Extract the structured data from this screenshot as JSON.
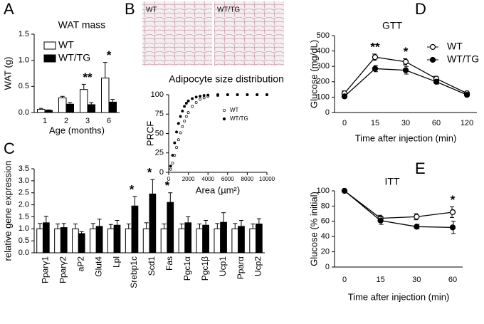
{
  "chart_data": [
    {
      "type": "bar",
      "panel": "A",
      "title": "WAT mass",
      "xlabel": "Age (months)",
      "ylabel": "WAT (g)",
      "categories": [
        "1",
        "2",
        "3",
        "6"
      ],
      "series": [
        {
          "name": "WT",
          "color": "#ffffff",
          "values": [
            0.06,
            0.28,
            0.44,
            0.66
          ],
          "errors": [
            0.02,
            0.03,
            0.1,
            0.3
          ]
        },
        {
          "name": "WT/TG",
          "color": "#000000",
          "values": [
            0.04,
            0.16,
            0.15,
            0.2
          ],
          "errors": [
            0.01,
            0.03,
            0.04,
            0.05
          ]
        }
      ],
      "ylim": [
        0,
        1.5
      ],
      "yticks": [
        {
          "value": 0,
          "label": "0.0"
        },
        {
          "value": 0.5,
          "label": "0.5"
        },
        {
          "value": 1,
          "label": "1.0"
        },
        {
          "value": 1.5,
          "label": "1.5"
        }
      ],
      "legend": "upper left",
      "annotations": [
        {
          "text": "**",
          "x": "3"
        },
        {
          "text": "*",
          "x": "6"
        }
      ]
    },
    {
      "type": "scatter",
      "panel": "B",
      "image_labels": [
        "WT",
        "WT/TG"
      ],
      "title": "Adipocyte size distribution",
      "xlabel": "Area (µm²)",
      "ylabel": "PRCF",
      "x": [
        200,
        400,
        600,
        800,
        1000,
        1200,
        1400,
        1600,
        1800,
        2000,
        2400,
        2800,
        3200,
        3600,
        4000,
        5000,
        6000,
        7000,
        8000,
        9000,
        10000
      ],
      "series": [
        {
          "name": "WT",
          "color": "#ffffff",
          "values": [
            4,
            12,
            22,
            32,
            42,
            51,
            59,
            66,
            72,
            77,
            85,
            90,
            94,
            96,
            98,
            99,
            100,
            100,
            100,
            100,
            100
          ]
        },
        {
          "name": "WT/TG",
          "color": "#000000",
          "values": [
            8,
            22,
            38,
            52,
            63,
            72,
            79,
            85,
            89,
            92,
            95,
            97,
            98,
            99,
            99.5,
            100,
            100,
            100,
            100,
            100,
            100
          ]
        }
      ],
      "xlim": [
        0,
        10000
      ],
      "xticks": [
        0,
        2000,
        4000,
        6000,
        8000,
        10000
      ],
      "ylim": [
        0,
        100
      ],
      "yticks": [
        0,
        25,
        50,
        75,
        100
      ],
      "legend": "right"
    },
    {
      "type": "bar",
      "panel": "C",
      "ylabel": "relative gene expression",
      "categories": [
        "Pparγ1",
        "Pparγ2",
        "aP2",
        "Glut4",
        "Lpl",
        "Srebp1c",
        "Scd1",
        "Fas",
        "Pgc1α",
        "Pgc1β",
        "Ucp1",
        "Pparα",
        "Ucp2"
      ],
      "series": [
        {
          "color": "#ffffff",
          "values": [
            1,
            1,
            1,
            1,
            1,
            1,
            1,
            1,
            1,
            1,
            1,
            1,
            1
          ],
          "errors": [
            0.22,
            0.2,
            0.2,
            0.22,
            0.18,
            0.2,
            0.25,
            0.2,
            0.2,
            0.2,
            0.22,
            0.22,
            0.2
          ]
        },
        {
          "color": "#000000",
          "values": [
            1.25,
            1.05,
            0.8,
            1.1,
            1.15,
            1.95,
            2.45,
            2.1,
            1.25,
            1.15,
            1.27,
            1.1,
            1.2
          ],
          "errors": [
            0.27,
            0.17,
            0.08,
            0.3,
            0.2,
            0.4,
            0.6,
            0.4,
            0.25,
            0.2,
            0.4,
            0.25,
            0.22
          ]
        }
      ],
      "ylim": [
        0,
        3.5
      ],
      "yticks": [
        {
          "value": 0,
          "label": "0.0"
        },
        {
          "value": 0.5,
          "label": "0.5"
        },
        {
          "value": 1,
          "label": "1.0"
        },
        {
          "value": 1.5,
          "label": "1.5"
        },
        {
          "value": 2,
          "label": "2.0"
        },
        {
          "value": 2.5,
          "label": "2.5"
        },
        {
          "value": 3,
          "label": "3.0"
        },
        {
          "value": 3.5,
          "label": "3.5"
        }
      ],
      "annotations": [
        {
          "text": "*",
          "x": "Srebp1c"
        },
        {
          "text": "*",
          "x": "Scd1"
        },
        {
          "text": "*",
          "x": "Fas"
        }
      ]
    },
    {
      "type": "line",
      "panel": "D",
      "title": "GTT",
      "xlabel": "Time after injection (min)",
      "ylabel": "Glucose (mg/dL)",
      "categories": [
        "0",
        "15",
        "30",
        "60",
        "120"
      ],
      "series": [
        {
          "name": "WT",
          "color": "#ffffff",
          "values": [
            125,
            360,
            330,
            220,
            125
          ],
          "errors": [
            15,
            20,
            20,
            15,
            8
          ]
        },
        {
          "name": "WT/TG",
          "color": "#000000",
          "values": [
            105,
            285,
            275,
            200,
            115
          ],
          "errors": [
            8,
            20,
            25,
            15,
            8
          ]
        }
      ],
      "ylim": [
        0,
        500
      ],
      "yticks": [
        0,
        100,
        200,
        300,
        400,
        500
      ],
      "legend": "upper right",
      "annotations": [
        {
          "text": "**",
          "x": "15"
        },
        {
          "text": "*",
          "x": "30"
        }
      ]
    },
    {
      "type": "line",
      "panel": "E",
      "title": "ITT",
      "xlabel": "Time after injection (min)",
      "ylabel": "Glucose (% initial)",
      "categories": [
        "0",
        "15",
        "30",
        "60"
      ],
      "series": [
        {
          "color": "#ffffff",
          "values": [
            100,
            64,
            66,
            72
          ],
          "errors": [
            0,
            4,
            4,
            7
          ]
        },
        {
          "color": "#000000",
          "values": [
            100,
            61,
            53,
            52
          ],
          "errors": [
            0,
            5,
            3,
            8
          ]
        }
      ],
      "ylim": [
        0,
        100
      ],
      "yticks": [
        0,
        20,
        40,
        60,
        80,
        100
      ],
      "annotations": [
        {
          "text": "*",
          "x": "60"
        }
      ]
    }
  ]
}
